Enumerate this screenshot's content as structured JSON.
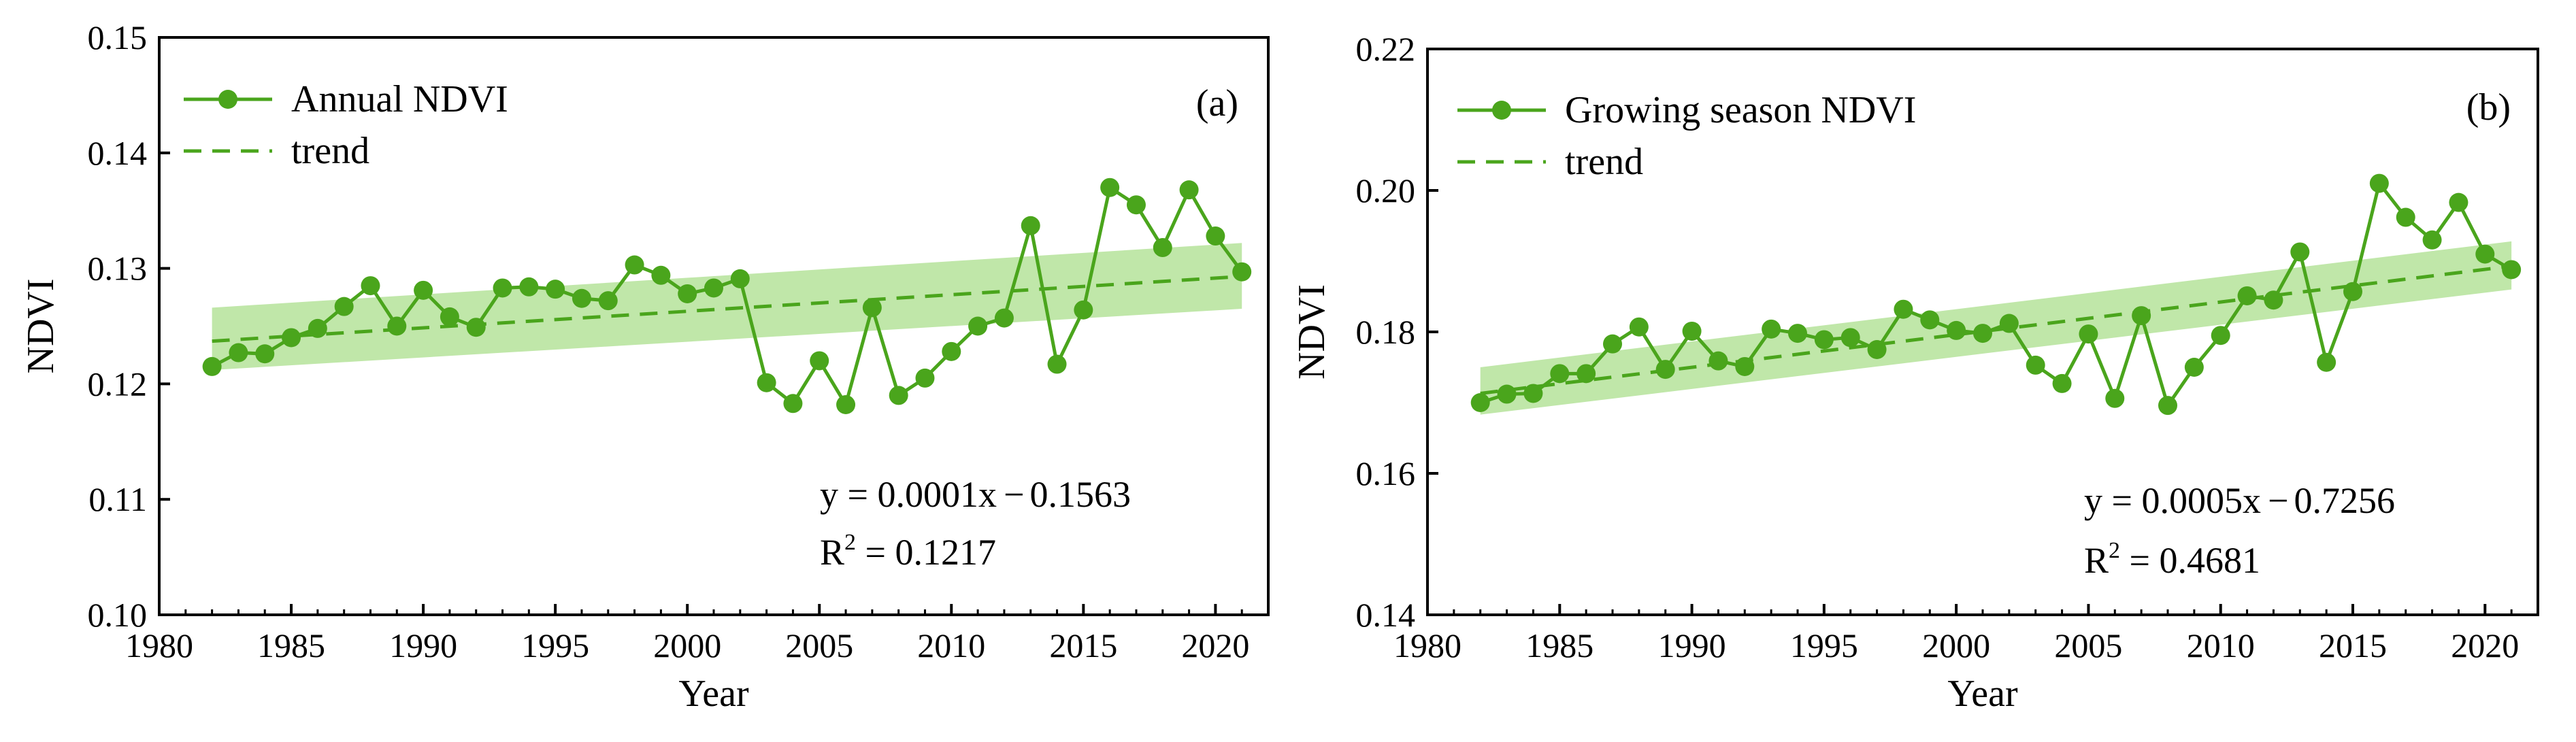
{
  "colors": {
    "line": "#4aa51c",
    "marker": "#4aa51c",
    "trend": "#4aa51c",
    "band": "#b9e4a0",
    "axis": "#000000"
  },
  "chart_data": [
    {
      "type": "line",
      "panel_label": "(a)",
      "xlabel": "Year",
      "ylabel": "NDVI",
      "xlim": [
        1980,
        2022
      ],
      "ylim": [
        0.1,
        0.15
      ],
      "xticks": [
        1980,
        1985,
        1990,
        1995,
        2000,
        2005,
        2010,
        2015,
        2020
      ],
      "xtick_labels": [
        "1980",
        "1985",
        "1990",
        "1995",
        "2000",
        "2005",
        "2010",
        "2015",
        "2020"
      ],
      "yticks": [
        0.1,
        0.11,
        0.12,
        0.13,
        0.14,
        0.15
      ],
      "ytick_labels": [
        "0.10",
        "0.11",
        "0.12",
        "0.13",
        "0.14",
        "0.15"
      ],
      "legend": {
        "series_label": "Annual NDVI",
        "trend_label": "trend",
        "position": "top-left"
      },
      "x": [
        1982,
        1983,
        1984,
        1985,
        1986,
        1987,
        1988,
        1989,
        1990,
        1991,
        1992,
        1993,
        1994,
        1995,
        1996,
        1997,
        1998,
        1999,
        2000,
        2001,
        2002,
        2003,
        2004,
        2005,
        2006,
        2007,
        2008,
        2009,
        2010,
        2011,
        2012,
        2013,
        2014,
        2015,
        2016,
        2017,
        2018,
        2019,
        2020,
        2021
      ],
      "series": [
        {
          "name": "Annual NDVI",
          "values": [
            0.1215,
            0.1227,
            0.1226,
            0.124,
            0.1248,
            0.1267,
            0.1285,
            0.125,
            0.1281,
            0.1258,
            0.1249,
            0.1283,
            0.1284,
            0.1282,
            0.1274,
            0.1272,
            0.1303,
            0.1294,
            0.1278,
            0.1283,
            0.1291,
            0.1201,
            0.1183,
            0.122,
            0.1182,
            0.1266,
            0.119,
            0.1205,
            0.1228,
            0.125,
            0.1257,
            0.1337,
            0.1217,
            0.1264,
            0.137,
            0.1355,
            0.1318,
            0.1368,
            0.1328,
            0.1297
          ]
        }
      ],
      "trend": {
        "x": [
          1982,
          2021
        ],
        "y": [
          0.1237,
          0.1293
        ],
        "band_upper": [
          0.1266,
          0.1322
        ],
        "band_lower": [
          0.1212,
          0.1265
        ]
      },
      "equation": {
        "prefix": "y = 0.0001x",
        "minus": "−",
        "constant": "0.1563"
      },
      "r2": {
        "base": "R",
        "sup": "2",
        "value": " = 0.1217"
      }
    },
    {
      "type": "line",
      "panel_label": "(b)",
      "xlabel": "Year",
      "ylabel": "NDVI",
      "xlim": [
        1980,
        2022
      ],
      "ylim": [
        0.14,
        0.22
      ],
      "xticks": [
        1980,
        1985,
        1990,
        1995,
        2000,
        2005,
        2010,
        2015,
        2020
      ],
      "xtick_labels": [
        "1980",
        "1985",
        "1990",
        "1995",
        "2000",
        "2005",
        "2010",
        "2015",
        "2020"
      ],
      "yticks": [
        0.14,
        0.16,
        0.18,
        0.2,
        0.22
      ],
      "ytick_labels": [
        "0.14",
        "0.16",
        "0.18",
        "0.20",
        "0.22"
      ],
      "legend": {
        "series_label": "Growing season NDVI",
        "trend_label": "trend",
        "position": "top-left"
      },
      "x": [
        1982,
        1983,
        1984,
        1985,
        1986,
        1987,
        1988,
        1989,
        1990,
        1991,
        1992,
        1993,
        1994,
        1995,
        1996,
        1997,
        1998,
        1999,
        2000,
        2001,
        2002,
        2003,
        2004,
        2005,
        2006,
        2007,
        2008,
        2009,
        2010,
        2011,
        2012,
        2013,
        2014,
        2015,
        2016,
        2017,
        2018,
        2019,
        2020,
        2021
      ],
      "series": [
        {
          "name": "Growing season NDVI",
          "values": [
            0.17,
            0.1712,
            0.1713,
            0.1741,
            0.1741,
            0.1783,
            0.1807,
            0.1747,
            0.1801,
            0.1759,
            0.1751,
            0.1804,
            0.1798,
            0.1789,
            0.1792,
            0.1775,
            0.1832,
            0.1817,
            0.1802,
            0.1798,
            0.1812,
            0.1753,
            0.1727,
            0.1797,
            0.1706,
            0.1823,
            0.1696,
            0.175,
            0.1795,
            0.1851,
            0.1845,
            0.1913,
            0.1757,
            0.1857,
            0.201,
            0.1962,
            0.193,
            0.1983,
            0.191,
            0.1888
          ]
        }
      ],
      "trend": {
        "x": [
          1982,
          2021
        ],
        "y": [
          0.1713,
          0.1893
        ],
        "band_upper": [
          0.175,
          0.1928
        ],
        "band_lower": [
          0.1683,
          0.186
        ]
      },
      "equation": {
        "prefix": "y = 0.0005x",
        "minus": "−",
        "constant": "0.7256"
      },
      "r2": {
        "base": "R",
        "sup": "2",
        "value": " = 0.4681"
      }
    }
  ]
}
